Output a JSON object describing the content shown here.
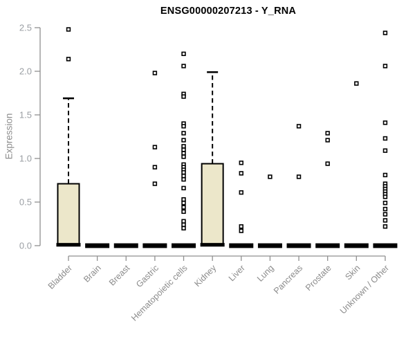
{
  "chart_data": {
    "type": "boxplot",
    "title": "ENSG00000207213 - Y_RNA",
    "ylabel": "Expression",
    "xlabel": "",
    "ylim": [
      0,
      2.5
    ],
    "yticks": [
      0,
      0.5,
      1.0,
      1.5,
      2.0,
      2.5
    ],
    "grid": false,
    "legend": "none",
    "categories": [
      "Bladder",
      "Brain",
      "Breast",
      "Gastric",
      "Hematopoietic cells",
      "Kidney",
      "Liver",
      "Lung",
      "Pancreas",
      "Prostate",
      "Skin",
      "Unknown / Other"
    ],
    "series": [
      {
        "category": "Bladder",
        "q1": 0,
        "median": 0.01,
        "q3": 0.71,
        "whisker_low": 0,
        "whisker_high": 1.69,
        "outliers": [
          2.48,
          2.14
        ]
      },
      {
        "category": "Brain",
        "q1": 0,
        "median": 0,
        "q3": 0,
        "whisker_low": 0,
        "whisker_high": 0,
        "outliers": []
      },
      {
        "category": "Breast",
        "q1": 0,
        "median": 0,
        "q3": 0,
        "whisker_low": 0,
        "whisker_high": 0,
        "outliers": []
      },
      {
        "category": "Gastric",
        "q1": 0,
        "median": 0,
        "q3": 0,
        "whisker_low": 0,
        "whisker_high": 0,
        "outliers": [
          1.98,
          1.13,
          0.9,
          0.71
        ]
      },
      {
        "category": "Hematopoietic cells",
        "q1": 0,
        "median": 0,
        "q3": 0,
        "whisker_low": 0,
        "whisker_high": 0,
        "outliers": [
          2.2,
          2.06,
          1.74,
          1.71,
          1.4,
          1.37,
          1.29,
          1.21,
          1.14,
          1.1,
          1.06,
          1.02,
          0.93,
          0.9,
          0.87,
          0.84,
          0.8,
          0.76,
          0.66,
          0.53,
          0.49,
          0.44,
          0.39,
          0.28,
          0.24,
          0.2
        ]
      },
      {
        "category": "Kidney",
        "q1": 0,
        "median": 0.01,
        "q3": 0.94,
        "whisker_low": 0,
        "whisker_high": 1.99,
        "outliers": []
      },
      {
        "category": "Liver",
        "q1": 0,
        "median": 0,
        "q3": 0,
        "whisker_low": 0,
        "whisker_high": 0,
        "outliers": [
          0.95,
          0.83,
          0.61,
          0.22,
          0.17
        ]
      },
      {
        "category": "Lung",
        "q1": 0,
        "median": 0,
        "q3": 0,
        "whisker_low": 0,
        "whisker_high": 0,
        "outliers": [
          0.79
        ]
      },
      {
        "category": "Pancreas",
        "q1": 0,
        "median": 0,
        "q3": 0,
        "whisker_low": 0,
        "whisker_high": 0,
        "outliers": [
          1.37,
          0.79
        ]
      },
      {
        "category": "Prostate",
        "q1": 0,
        "median": 0,
        "q3": 0,
        "whisker_low": 0,
        "whisker_high": 0,
        "outliers": [
          1.29,
          1.21,
          0.94
        ]
      },
      {
        "category": "Skin",
        "q1": 0,
        "median": 0,
        "q3": 0,
        "whisker_low": 0,
        "whisker_high": 0,
        "outliers": [
          1.86
        ]
      },
      {
        "category": "Unknown / Other",
        "q1": 0,
        "median": 0,
        "q3": 0,
        "whisker_low": 0,
        "whisker_high": 0,
        "outliers": [
          2.44,
          2.06,
          1.41,
          1.23,
          1.09,
          0.81,
          0.71,
          0.68,
          0.65,
          0.62,
          0.59,
          0.56,
          0.49,
          0.42,
          0.36,
          0.29,
          0.22
        ]
      }
    ]
  },
  "style": {
    "box_fill": "#ece7ca",
    "box_stroke": "#000000",
    "median_color": "#000000",
    "whisker_color": "#000000",
    "outlier_fill": "#ffffff",
    "outlier_stroke": "#000000",
    "axis_color": "#8f8f8f",
    "y_tick_label_color": "#9a9ea3",
    "x_tick_label_color": "#8b8b8b",
    "title_color": "#000000",
    "background": "#ffffff"
  }
}
